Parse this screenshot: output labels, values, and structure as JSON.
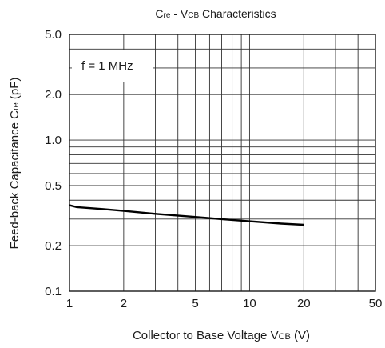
{
  "chart_data": {
    "type": "line",
    "title": {
      "main_a": "C",
      "main_sub": "re",
      "main_b": " - V",
      "main_sub2": "CB",
      "main_c": " Characteristics"
    },
    "xlabel": {
      "a": "Collector to Base Voltage V",
      "sub": "CB",
      "b": " (V)"
    },
    "ylabel": {
      "a": "Feed-back Capacitance C",
      "sub": "re",
      "b": " (pF)"
    },
    "x_scale": "log",
    "y_scale": "log",
    "xlim": [
      1,
      50
    ],
    "ylim": [
      0.1,
      5.0
    ],
    "x_ticks": [
      {
        "v": 1,
        "label": "1"
      },
      {
        "v": 2,
        "label": "2"
      },
      {
        "v": 5,
        "label": "5"
      },
      {
        "v": 10,
        "label": "10"
      },
      {
        "v": 20,
        "label": "20"
      },
      {
        "v": 50,
        "label": "50"
      }
    ],
    "y_ticks": [
      {
        "v": 0.1,
        "label": "0.1"
      },
      {
        "v": 0.2,
        "label": "0.2"
      },
      {
        "v": 0.5,
        "label": "0.5"
      },
      {
        "v": 1.0,
        "label": "1.0"
      },
      {
        "v": 2.0,
        "label": "2.0"
      },
      {
        "v": 5.0,
        "label": "5.0"
      }
    ],
    "x_grid": [
      2,
      3,
      4,
      5,
      6,
      7,
      8,
      9,
      10,
      20,
      30,
      40
    ],
    "y_grid": [
      0.2,
      0.3,
      0.4,
      0.5,
      0.6,
      0.7,
      0.8,
      0.9,
      1.0,
      2.0,
      3.0,
      4.0
    ],
    "annotation": "f = 1 MHz",
    "series": [
      {
        "color": "#000000",
        "x": [
          1,
          1.1,
          1.5,
          2,
          3,
          5,
          7,
          10,
          15,
          20
        ],
        "y": [
          0.37,
          0.36,
          0.35,
          0.34,
          0.325,
          0.31,
          0.3,
          0.29,
          0.28,
          0.275
        ]
      }
    ]
  }
}
